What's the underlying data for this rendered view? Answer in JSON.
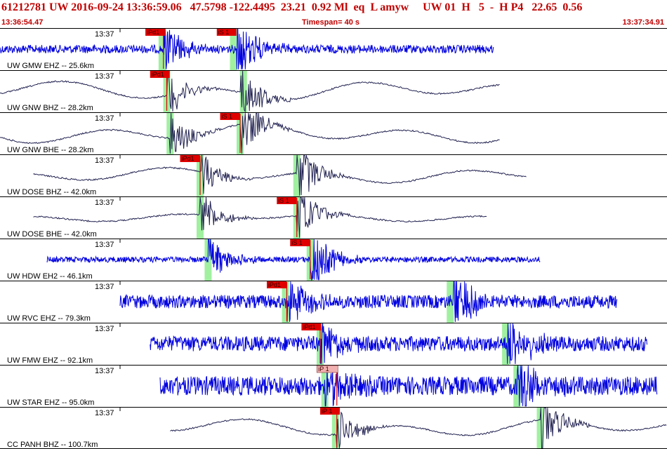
{
  "header": {
    "event_line": "61212781 UW 2016-09-24 13:36:59.06   47.5798 -122.4495  23.21  0.92 Ml  eq  L amyw     UW 01  H   5  -  H P4   22.65  0.56",
    "start_time": "13:36:54.47",
    "timespan": "Timespan=  40 s",
    "end_time": "13:37:34.91"
  },
  "colors": {
    "trace_blue": "#0000e0",
    "trace_dark": "#202050",
    "pick_red": "#e00000",
    "pick_pink": "#f0b0b0",
    "window_green": "#a0f0a0",
    "divider": "#000000"
  },
  "panels": [
    {
      "label": "UW GMW EHZ -- 25.6km",
      "time_label": "13:37",
      "color": "blue",
      "style": "noisy",
      "amp": 0.22,
      "start": 0.0,
      "end": 0.74,
      "arrivals": [
        0.245,
        0.355
      ],
      "green": [
        0.243,
        0.35
      ],
      "picks": [
        {
          "text": "iPd1",
          "x": 0.218,
          "w": 28,
          "pink": false
        },
        {
          "text": "iS 1",
          "x": 0.325,
          "w": 28,
          "pink": false
        }
      ],
      "ticks": [
        0.245
      ]
    },
    {
      "label": "UW GNW BHZ -- 28.2km",
      "time_label": "13:37",
      "color": "dark",
      "style": "smooth",
      "amp": 0.6,
      "start": 0.0,
      "end": 0.75,
      "arrivals": [
        0.25,
        0.36
      ],
      "green": [
        0.25,
        0.365
      ],
      "picks": [
        {
          "text": "iPd1",
          "x": 0.225,
          "w": 28,
          "pink": false
        }
      ],
      "ticks": [
        0.25
      ]
    },
    {
      "label": "UW GNW BHE -- 28.2km",
      "time_label": "13:37",
      "color": "dark",
      "style": "smooth",
      "amp": 0.6,
      "start": 0.0,
      "end": 0.75,
      "arrivals": [
        0.255,
        0.36
      ],
      "green": [
        0.255,
        0.36
      ],
      "picks": [
        {
          "text": "iS 1",
          "x": 0.33,
          "w": 28,
          "pink": false
        }
      ],
      "ticks": [
        0.36
      ]
    },
    {
      "label": "UW DOSE BHZ -- 42.0km",
      "time_label": "13:37",
      "color": "dark",
      "style": "smooth",
      "amp": 0.45,
      "start": 0.05,
      "end": 0.79,
      "arrivals": [
        0.3,
        0.445
      ],
      "green": [
        0.3,
        0.445
      ],
      "picks": [
        {
          "text": "iPd1",
          "x": 0.27,
          "w": 28,
          "pink": false
        }
      ],
      "ticks": [
        0.3
      ]
    },
    {
      "label": "UW DOSE BHE -- 42.0km",
      "time_label": "13:37",
      "color": "dark",
      "style": "smooth",
      "amp": 0.25,
      "start": 0.05,
      "end": 0.73,
      "arrivals": [
        0.3,
        0.445
      ],
      "green": [
        0.3,
        0.445
      ],
      "picks": [
        {
          "text": "iS 1",
          "x": 0.415,
          "w": 28,
          "pink": false
        }
      ],
      "ticks": [
        0.445
      ]
    },
    {
      "label": "UW HDW EH2 -- 46.1km",
      "time_label": "13:37",
      "color": "blue",
      "style": "noisy",
      "amp": 0.15,
      "start": 0.07,
      "end": 0.81,
      "arrivals": [
        0.312,
        0.465
      ],
      "green": [
        0.312,
        0.465
      ],
      "picks": [
        {
          "text": "iS 1",
          "x": 0.435,
          "w": 28,
          "pink": false
        }
      ],
      "ticks": [
        0.465
      ]
    },
    {
      "label": "UW RVC EHZ -- 79.3km",
      "time_label": "13:37",
      "color": "blue",
      "style": "noisy",
      "amp": 0.35,
      "start": 0.18,
      "end": 0.925,
      "arrivals": [
        0.43,
        0.68
      ],
      "green": [
        0.428,
        0.675
      ],
      "picks": [
        {
          "text": "iPd1",
          "x": 0.4,
          "w": 28,
          "pink": false
        }
      ],
      "ticks": [
        0.43
      ]
    },
    {
      "label": "UW FMW EHZ -- 92.1km",
      "time_label": "13:37",
      "color": "blue",
      "style": "noisy",
      "amp": 0.4,
      "start": 0.225,
      "end": 0.97,
      "arrivals": [
        0.48,
        0.76
      ],
      "green": [
        0.48,
        0.758
      ],
      "picks": [
        {
          "text": "iPd1",
          "x": 0.452,
          "w": 28,
          "pink": false
        }
      ],
      "ticks": [
        0.48
      ]
    },
    {
      "label": "UW STAR EHZ -- 95.0km",
      "time_label": "13:37",
      "color": "blue",
      "style": "noisy",
      "amp": 0.5,
      "start": 0.24,
      "end": 0.985,
      "arrivals": [
        0.487,
        0.775
      ],
      "green": [
        0.487,
        0.775
      ],
      "picks": [
        {
          "text": "iP 1",
          "x": 0.475,
          "w": 30,
          "pink": true
        }
      ],
      "ticks": [
        0.505
      ]
    },
    {
      "label": "CC PANH BHZ -- 100.7km",
      "time_label": "13:37",
      "color": "dark",
      "style": "smooth",
      "amp": 0.55,
      "start": 0.255,
      "end": 1.0,
      "arrivals": [
        0.505,
        0.81
      ],
      "green": [
        0.503,
        0.81
      ],
      "picks": [
        {
          "text": "iP 1",
          "x": 0.48,
          "w": 28,
          "pink": false
        }
      ],
      "ticks": [
        0.505
      ]
    }
  ]
}
